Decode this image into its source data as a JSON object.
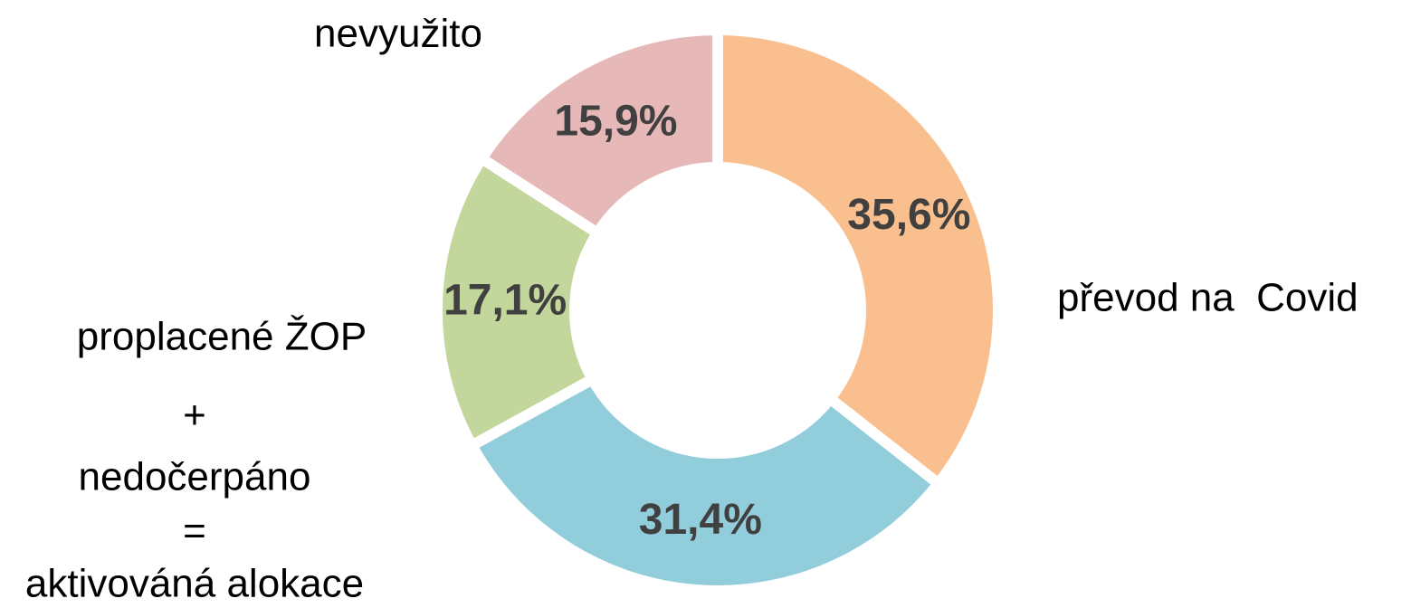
{
  "chart_data": {
    "type": "donut",
    "categories": [
      "převod na  Covid",
      null,
      "proplacené ŽOP",
      "nevyužito"
    ],
    "values": [
      35.6,
      31.4,
      17.1,
      15.9
    ],
    "value_labels": [
      "35,6%",
      "31,4%",
      "17,1%",
      "15,9%"
    ],
    "colors": [
      "#f9bf8f",
      "#92cddc",
      "#c3d69b",
      "#e6b9b8"
    ],
    "annotations": [
      "+",
      "nedočerpáno",
      "=",
      "aktivováná alokace"
    ]
  }
}
